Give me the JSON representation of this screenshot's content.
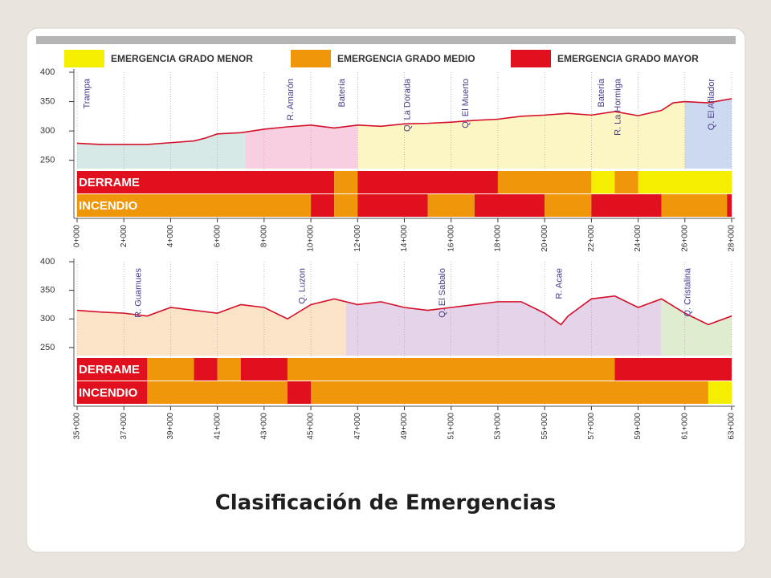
{
  "legend": [
    {
      "label": "EMERGENCIA GRADO MENOR",
      "color": "#f6ee00"
    },
    {
      "label": "EMERGENCIA GRADO MEDIO",
      "color": "#f0960a"
    },
    {
      "label": "EMERGENCIA GRADO MAYOR",
      "color": "#e0101e"
    }
  ],
  "panels": [
    {
      "xlim": [
        0,
        28
      ],
      "ylim": [
        240,
        400
      ],
      "yticks": [
        250,
        300,
        350,
        400
      ],
      "xticks": [
        {
          "value": 0,
          "label": "0+000"
        },
        {
          "value": 2,
          "label": "2+000"
        },
        {
          "value": 4,
          "label": "4+000"
        },
        {
          "value": 6,
          "label": "6+000"
        },
        {
          "value": 8,
          "label": "8+000"
        },
        {
          "value": 10,
          "label": "10+000"
        },
        {
          "value": 12,
          "label": "12+000"
        },
        {
          "value": 14,
          "label": "14+000"
        },
        {
          "value": 16,
          "label": "16+000"
        },
        {
          "value": 18,
          "label": "18+000"
        },
        {
          "value": 20,
          "label": "20+000"
        },
        {
          "value": 22,
          "label": "22+000"
        },
        {
          "value": 24,
          "label": "24+000"
        },
        {
          "value": 26,
          "label": "26+000"
        },
        {
          "value": 28,
          "label": "28+000"
        }
      ],
      "zones": [
        {
          "from": 0,
          "to": 7.2,
          "color": "#d6e9e6"
        },
        {
          "from": 7.2,
          "to": 12,
          "color": "#f7cfe0"
        },
        {
          "from": 12,
          "to": 26,
          "color": "#fbf6c4"
        },
        {
          "from": 26,
          "to": 28,
          "color": "#cdd9f0"
        }
      ],
      "profile": {
        "x": [
          0,
          1,
          2,
          3,
          4,
          5,
          5.5,
          6,
          7,
          8,
          9,
          10,
          11,
          12,
          13,
          14,
          15,
          16,
          17,
          18,
          19,
          20,
          21,
          22,
          23,
          24,
          25,
          25.5,
          26,
          27,
          28
        ],
        "y": [
          279,
          277,
          277,
          277,
          280,
          283,
          288,
          295,
          297,
          303,
          307,
          310,
          305,
          310,
          308,
          312,
          313,
          315,
          318,
          320,
          325,
          327,
          330,
          327,
          333,
          326,
          335,
          348,
          350,
          348,
          355
        ]
      },
      "labels": [
        {
          "text": "Trampa",
          "x": 0.3
        },
        {
          "text": "R. Amarón",
          "x": 9
        },
        {
          "text": "Batería",
          "x": 11.2
        },
        {
          "text": "Q. La Dorada",
          "x": 14
        },
        {
          "text": "Q. El Muerto",
          "x": 16.5
        },
        {
          "text": "Batería",
          "x": 22.3
        },
        {
          "text": "R. La Hormiga",
          "x": 23
        },
        {
          "text": "Q. El Afilador",
          "x": 27
        }
      ],
      "rows": [
        {
          "name": "DERRAME",
          "segments": [
            {
              "from": 0,
              "to": 11,
              "color": "#e0101e"
            },
            {
              "from": 11,
              "to": 12,
              "color": "#f0960a"
            },
            {
              "from": 12,
              "to": 18,
              "color": "#e0101e"
            },
            {
              "from": 18,
              "to": 22,
              "color": "#f0960a"
            },
            {
              "from": 22,
              "to": 23,
              "color": "#f6ee00"
            },
            {
              "from": 23,
              "to": 24,
              "color": "#f0960a"
            },
            {
              "from": 24,
              "to": 28,
              "color": "#f6ee00"
            }
          ]
        },
        {
          "name": "INCENDIO",
          "segments": [
            {
              "from": 0,
              "to": 10,
              "color": "#f0960a"
            },
            {
              "from": 10,
              "to": 11,
              "color": "#e0101e"
            },
            {
              "from": 11,
              "to": 12,
              "color": "#f0960a"
            },
            {
              "from": 12,
              "to": 15,
              "color": "#e0101e"
            },
            {
              "from": 15,
              "to": 17,
              "color": "#f0960a"
            },
            {
              "from": 17,
              "to": 20,
              "color": "#e0101e"
            },
            {
              "from": 20,
              "to": 22,
              "color": "#f0960a"
            },
            {
              "from": 22,
              "to": 25,
              "color": "#e0101e"
            },
            {
              "from": 25,
              "to": 27.8,
              "color": "#f0960a"
            },
            {
              "from": 27.8,
              "to": 28,
              "color": "#e0101e"
            }
          ]
        }
      ]
    },
    {
      "xlim": [
        35,
        63
      ],
      "ylim": [
        240,
        400
      ],
      "yticks": [
        250,
        300,
        350,
        400
      ],
      "xticks": [
        {
          "value": 35,
          "label": "35+000"
        },
        {
          "value": 37,
          "label": "37+000"
        },
        {
          "value": 39,
          "label": "39+000"
        },
        {
          "value": 41,
          "label": "41+000"
        },
        {
          "value": 43,
          "label": "43+000"
        },
        {
          "value": 45,
          "label": "45+000"
        },
        {
          "value": 47,
          "label": "47+000"
        },
        {
          "value": 49,
          "label": "49+000"
        },
        {
          "value": 51,
          "label": "51+000"
        },
        {
          "value": 53,
          "label": "53+000"
        },
        {
          "value": 55,
          "label": "55+000"
        },
        {
          "value": 57,
          "label": "57+000"
        },
        {
          "value": 59,
          "label": "59+000"
        },
        {
          "value": 61,
          "label": "61+000"
        },
        {
          "value": 63,
          "label": "63+000"
        }
      ],
      "zones": [
        {
          "from": 35,
          "to": 46.5,
          "color": "#fbe3c7"
        },
        {
          "from": 46.5,
          "to": 60,
          "color": "#e5d3ea"
        },
        {
          "from": 60,
          "to": 63,
          "color": "#e0ecd0"
        }
      ],
      "profile": {
        "x": [
          35,
          36,
          37,
          38,
          39,
          40,
          41,
          42,
          43,
          44,
          45,
          46,
          47,
          48,
          49,
          50,
          51,
          52,
          53,
          54,
          55,
          55.7,
          56,
          57,
          58,
          59,
          60,
          61,
          62,
          63
        ],
        "y": [
          315,
          312,
          310,
          305,
          320,
          315,
          310,
          325,
          320,
          300,
          325,
          335,
          325,
          330,
          320,
          315,
          320,
          325,
          330,
          330,
          310,
          290,
          305,
          335,
          340,
          320,
          335,
          310,
          290,
          305
        ]
      },
      "labels": [
        {
          "text": "R. Guamues",
          "x": 37.5
        },
        {
          "text": "Q. Luzon",
          "x": 44.5
        },
        {
          "text": "Q. El Sabalo",
          "x": 50.5
        },
        {
          "text": "R. Acae",
          "x": 55.5
        },
        {
          "text": "Q. Cristalina",
          "x": 61
        }
      ],
      "rows": [
        {
          "name": "DERRAME",
          "segments": [
            {
              "from": 35,
              "to": 38,
              "color": "#e0101e"
            },
            {
              "from": 38,
              "to": 40,
              "color": "#f0960a"
            },
            {
              "from": 40,
              "to": 41,
              "color": "#e0101e"
            },
            {
              "from": 41,
              "to": 42,
              "color": "#f0960a"
            },
            {
              "from": 42,
              "to": 44,
              "color": "#e0101e"
            },
            {
              "from": 44,
              "to": 58,
              "color": "#f0960a"
            },
            {
              "from": 58,
              "to": 63,
              "color": "#e0101e"
            }
          ]
        },
        {
          "name": "INCENDIO",
          "segments": [
            {
              "from": 35,
              "to": 38,
              "color": "#e0101e"
            },
            {
              "from": 38,
              "to": 44,
              "color": "#f0960a"
            },
            {
              "from": 44,
              "to": 45,
              "color": "#e0101e"
            },
            {
              "from": 45,
              "to": 62,
              "color": "#f0960a"
            },
            {
              "from": 62,
              "to": 63,
              "color": "#f6ee00"
            }
          ]
        }
      ]
    }
  ],
  "caption": "Clasificación de Emergencias"
}
